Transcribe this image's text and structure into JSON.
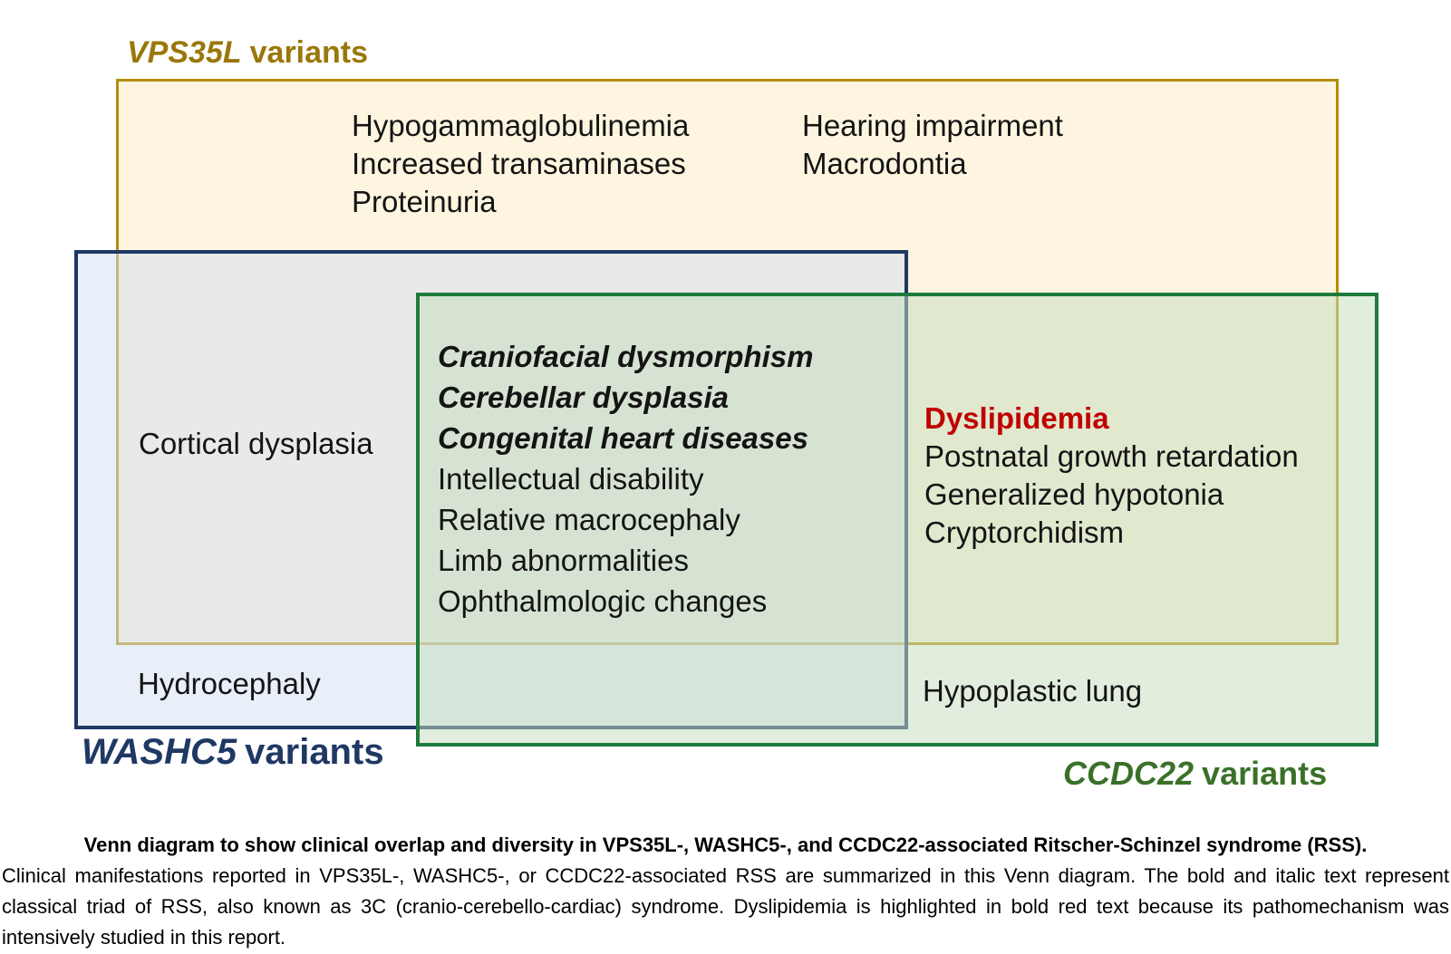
{
  "figure": {
    "type": "venn-diagram",
    "sets": {
      "vps35l": {
        "gene": "VPS35L",
        "suffix": "variants",
        "text_color": "#9A770A",
        "border_color": "#B28E09",
        "fill_color": "#FCF4DE"
      },
      "washc5": {
        "gene": "WASHC5",
        "suffix": "variants",
        "text_color": "#1F3864",
        "border_color": "#1F3864",
        "fill_color": "#E9EFF8"
      },
      "ccdc22": {
        "gene": "CCDC22",
        "suffix": "variants",
        "text_color": "#3A7128",
        "border_color": "#1E7B3C",
        "fill_color": "#E2EEDE"
      }
    },
    "regions": {
      "vps35l_only_left": [
        "Hypogammaglobulinemia",
        "Increased transaminases",
        "Proteinuria"
      ],
      "vps35l_only_right": [
        "Hearing impairment",
        "Macrodontia"
      ],
      "vps35l_washc5_overlap": [
        "Cortical dysplasia"
      ],
      "triple_overlap_classical_triad": [
        "Craniofacial dysmorphism",
        "Cerebellar dysplasia",
        "Congenital heart diseases"
      ],
      "triple_overlap_other": [
        "Intellectual disability",
        "Relative macrocephaly",
        "Limb abnormalities",
        "Ophthalmologic changes"
      ],
      "vps35l_ccdc22_highlight": "Dyslipidemia",
      "vps35l_ccdc22_overlap": [
        "Postnatal growth retardation",
        "Generalized hypotonia",
        "Cryptorchidism"
      ],
      "washc5_only": [
        "Hydrocephaly"
      ],
      "ccdc22_only": [
        "Hypoplastic lung"
      ]
    },
    "highlight_color": "#C00000"
  },
  "caption": {
    "title": "Venn diagram to show clinical overlap and diversity in VPS35L-, WASHC5-, and CCDC22-associated Ritscher-Schinzel syndrome (RSS).",
    "body": "Clinical manifestations reported in VPS35L-, WASHC5-, or CCDC22-associated RSS are summarized in this Venn diagram. The bold and italic text represent classical triad of RSS, also known as 3C (cranio-cerebello-cardiac) syndrome. Dyslipidemia is highlighted in bold red text because its pathomechanism was intensively studied in this report."
  }
}
